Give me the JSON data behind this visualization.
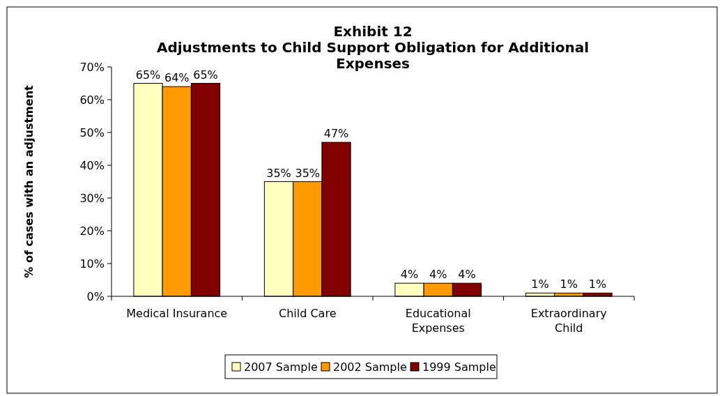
{
  "chart_data": {
    "type": "bar",
    "title": "Exhibit 12\nAdjustments to Child Support Obligation for Additional\nExpenses",
    "ylabel": "% of cases with an adjustment",
    "categories": [
      "Medical Insurance",
      "Child Care",
      "Educational Expenses",
      "Extraordinary Child"
    ],
    "series": [
      {
        "name": "2007 Sample",
        "color": "#ffffc0",
        "values": [
          65,
          35,
          4,
          1
        ],
        "value_labels": [
          "65%",
          "35%",
          "4%",
          "1%"
        ]
      },
      {
        "name": "2002 Sample",
        "color": "#ff9900",
        "values": [
          64,
          35,
          4,
          1
        ],
        "value_labels": [
          "64%",
          "35%",
          "4%",
          "1%"
        ]
      },
      {
        "name": "1999 Sample",
        "color": "#800000",
        "values": [
          65,
          47,
          4,
          1
        ],
        "value_labels": [
          "65%",
          "47%",
          "4%",
          "1%"
        ]
      }
    ],
    "ylim": [
      0,
      70
    ],
    "yticks": [
      {
        "value": 0,
        "label": "0%"
      },
      {
        "value": 10,
        "label": "10%"
      },
      {
        "value": 20,
        "label": "20%"
      },
      {
        "value": 30,
        "label": "30%"
      },
      {
        "value": 40,
        "label": "40%"
      },
      {
        "value": 50,
        "label": "50%"
      },
      {
        "value": 60,
        "label": "60%"
      },
      {
        "value": 70,
        "label": "70%"
      }
    ],
    "grid": false,
    "legend": "bottom"
  }
}
